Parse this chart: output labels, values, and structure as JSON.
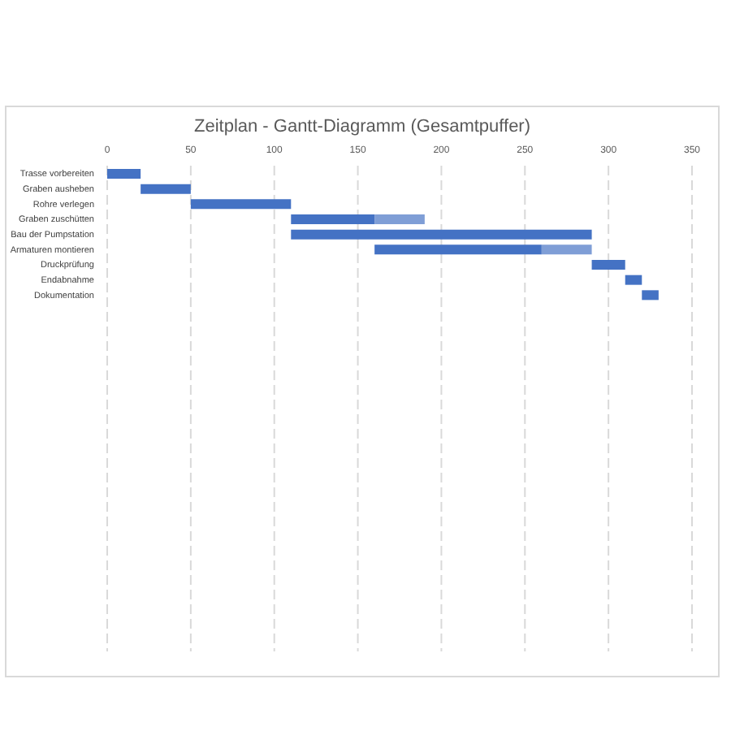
{
  "chart_data": {
    "type": "bar",
    "orientation": "horizontal",
    "title": "Zeitplan - Gantt-Diagramm (Gesamtpuffer)",
    "categories": [
      "Trasse vorbereiten",
      "Graben ausheben",
      "Rohre verlegen",
      "Graben zuschütten",
      "Bau der Pumpstation",
      "Armaturen montieren",
      "Druckprüfung",
      "Endabnahme",
      "Dokumentation"
    ],
    "series": [
      {
        "color": "#4472c4",
        "base": [
          0,
          20,
          50,
          110,
          110,
          160,
          290,
          310,
          320
        ],
        "values": [
          20,
          30,
          60,
          50,
          180,
          100,
          20,
          10,
          10
        ]
      },
      {
        "color": "#7f9ed6",
        "base": [
          null,
          null,
          null,
          160,
          null,
          260,
          null,
          null,
          null
        ],
        "values": [
          null,
          null,
          null,
          30,
          null,
          30,
          null,
          null,
          null
        ]
      }
    ],
    "xlim": [
      0,
      350
    ],
    "xticks": [
      0,
      50,
      100,
      150,
      200,
      250,
      300,
      350
    ],
    "grid": "x"
  }
}
